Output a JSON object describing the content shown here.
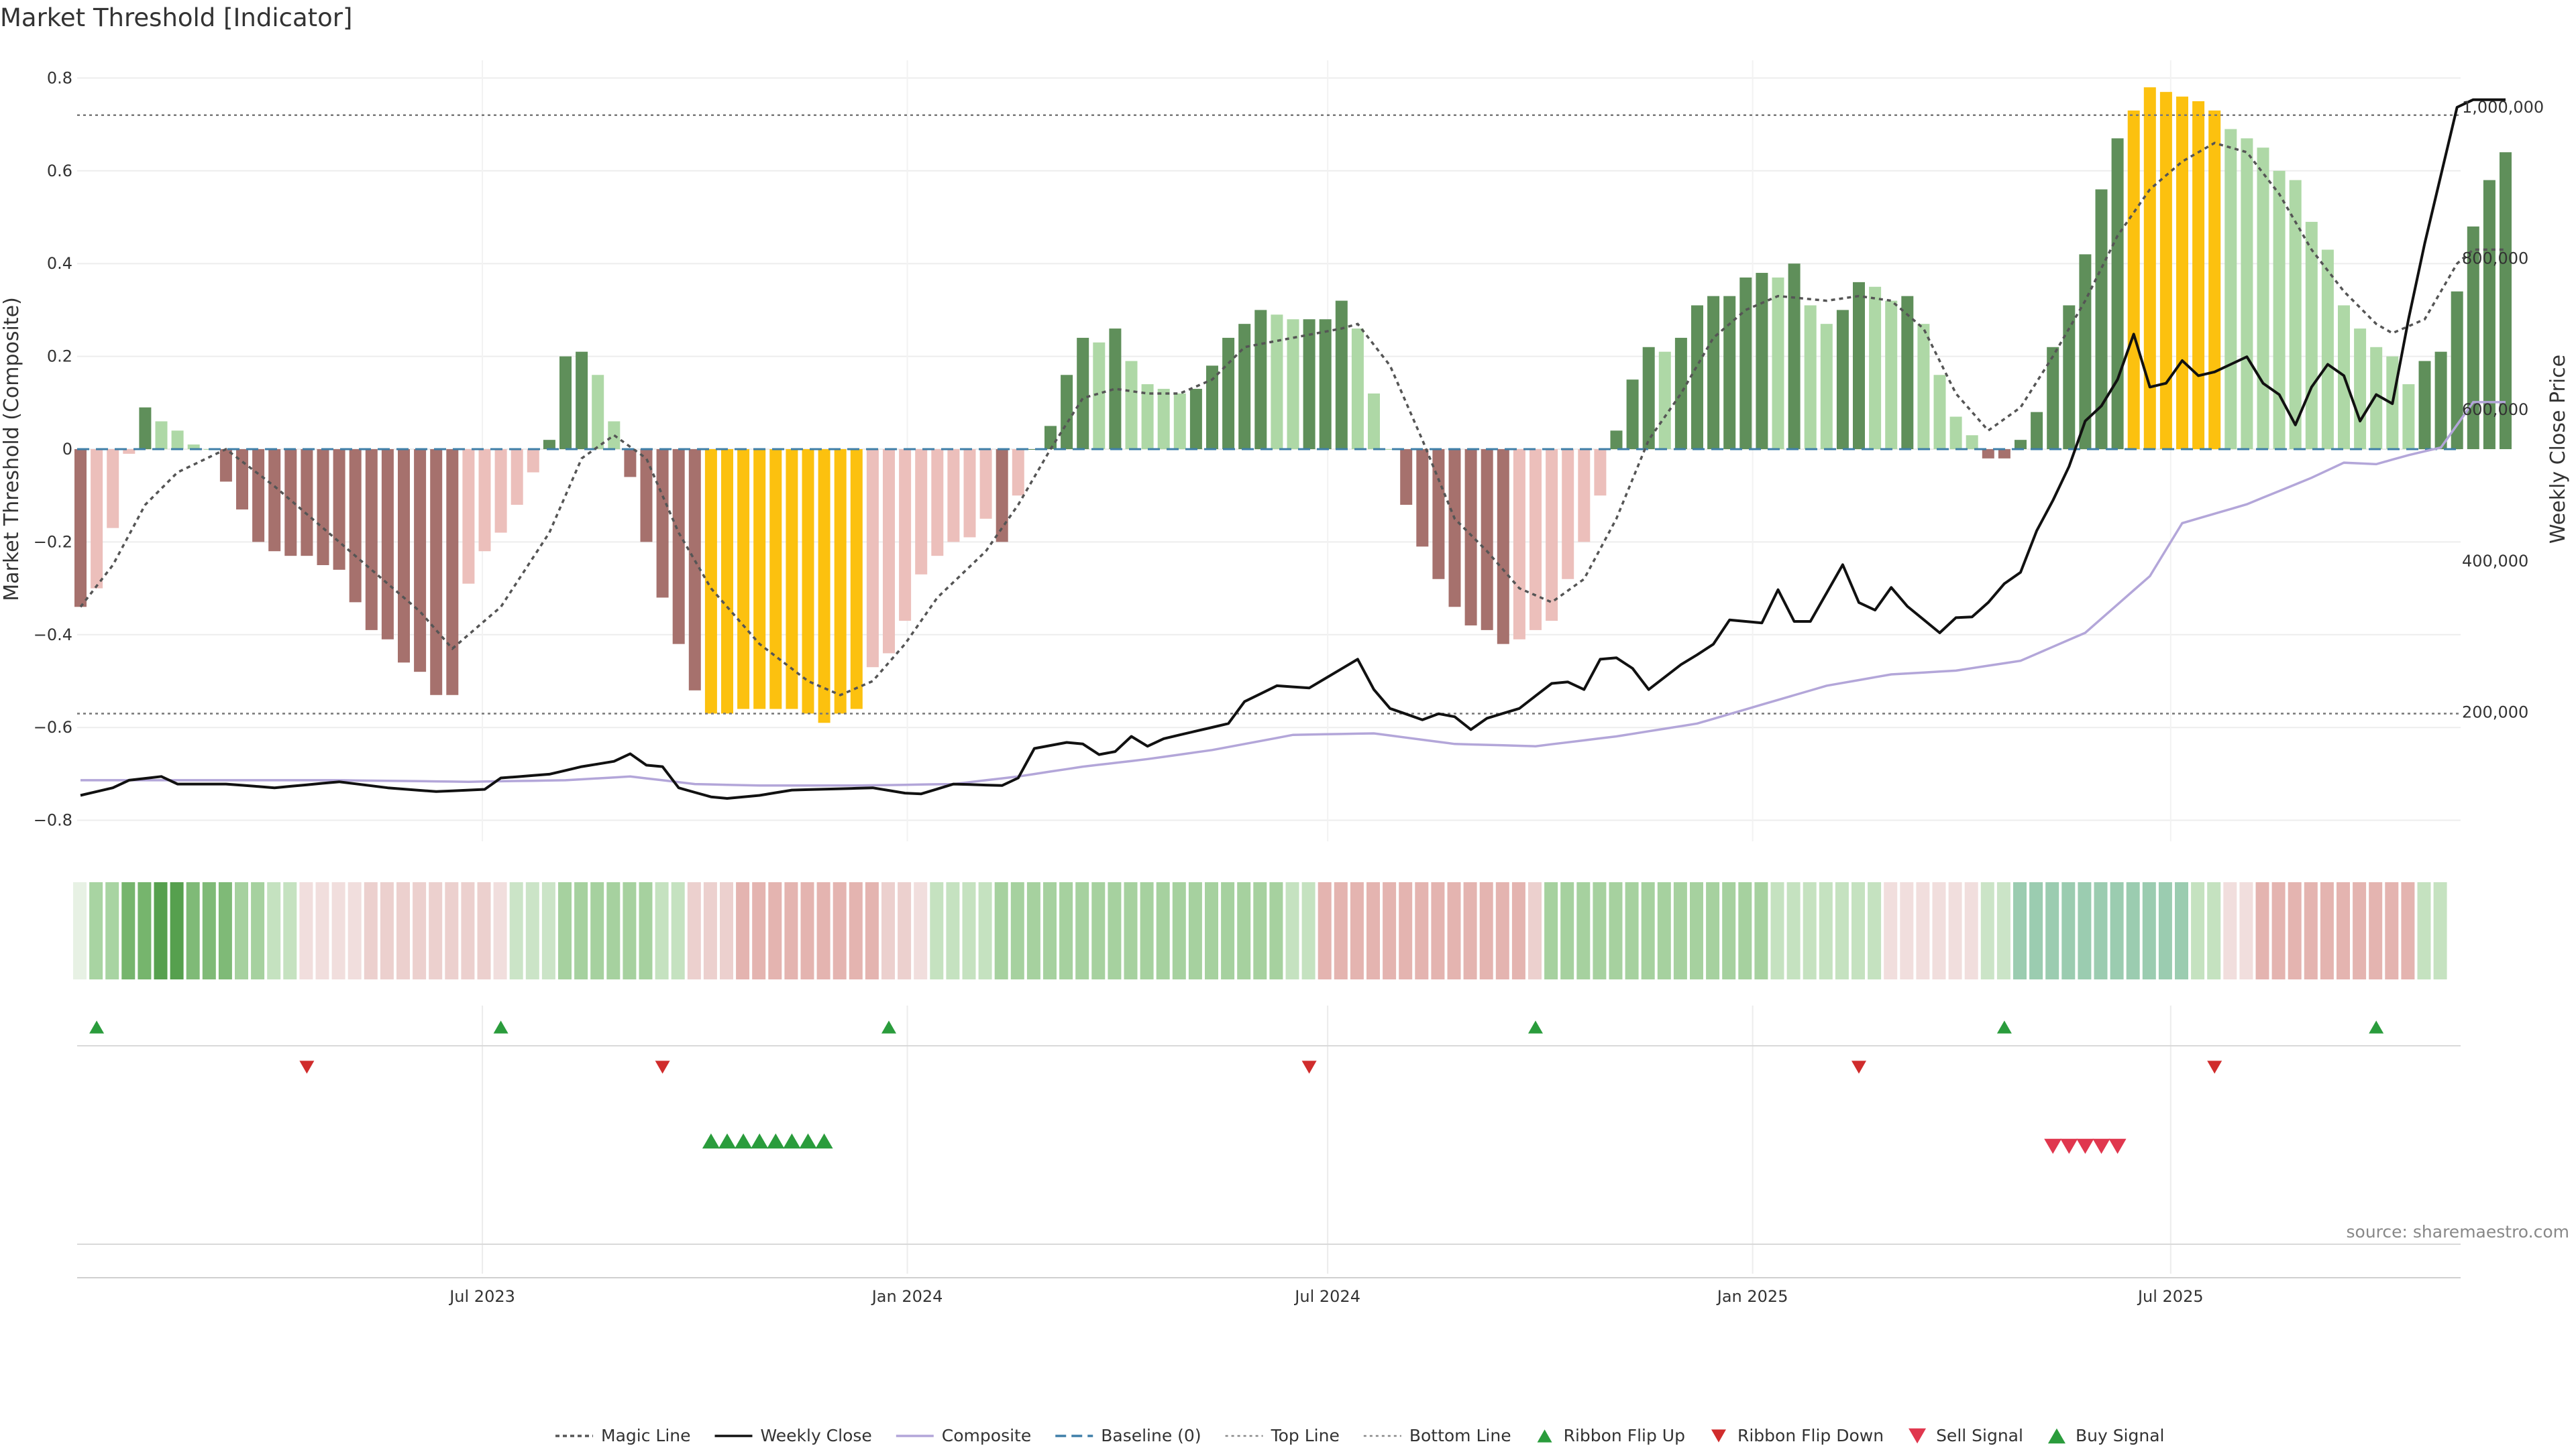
{
  "chart_data": {
    "type": "bar",
    "title": "Market Threshold [Indicator]",
    "ylabel": "Market Threshold (Composite)",
    "y2label": "Weekly Close Price",
    "ylim": [
      -0.85,
      0.85
    ],
    "y2lim": [
      0,
      1100000
    ],
    "yticks": [
      "0.8",
      "0.6",
      "0.4",
      "0.2",
      "0",
      "−0.2",
      "−0.4",
      "−0.6",
      "−0.8"
    ],
    "y2ticks": [
      "1,000,000",
      "800,000",
      "600,000",
      "400,000",
      "200,000"
    ],
    "xstart": "2023-01-08",
    "interval_days": 7,
    "xticks": [
      {
        "label": "Jul 2023",
        "date": "2023-07-01"
      },
      {
        "label": "Jan 2024",
        "date": "2024-01-01"
      },
      {
        "label": "Jul 2024",
        "date": "2024-07-01"
      },
      {
        "label": "Jan 2025",
        "date": "2025-01-01"
      },
      {
        "label": "Jul 2025",
        "date": "2025-07-01"
      }
    ],
    "top_line": 0.72,
    "bottom_line": -0.57,
    "composite_bars": [
      -0.34,
      -0.3,
      -0.17,
      -0.01,
      0.09,
      0.06,
      0.04,
      0.01,
      0,
      -0.07,
      -0.13,
      -0.2,
      -0.22,
      -0.23,
      -0.23,
      -0.25,
      -0.26,
      -0.33,
      -0.39,
      -0.41,
      -0.46,
      -0.48,
      -0.53,
      -0.53,
      -0.29,
      -0.22,
      -0.18,
      -0.12,
      -0.05,
      0.02,
      0.2,
      0.21,
      0.16,
      0.06,
      -0.06,
      -0.2,
      -0.32,
      -0.42,
      -0.52,
      -0.57,
      -0.57,
      -0.56,
      -0.56,
      -0.56,
      -0.56,
      -0.57,
      -0.59,
      -0.57,
      -0.56,
      -0.47,
      -0.44,
      -0.37,
      -0.27,
      -0.23,
      -0.2,
      -0.19,
      -0.15,
      -0.2,
      -0.1,
      0,
      0.05,
      0.16,
      0.24,
      0.23,
      0.26,
      0.19,
      0.14,
      0.13,
      0.12,
      0.13,
      0.18,
      0.24,
      0.27,
      0.3,
      0.29,
      0.28,
      0.28,
      0.28,
      0.32,
      0.26,
      0.12,
      0,
      -0.12,
      -0.21,
      -0.28,
      -0.34,
      -0.38,
      -0.39,
      -0.42,
      -0.41,
      -0.39,
      -0.37,
      -0.28,
      -0.2,
      -0.1,
      0.04,
      0.15,
      0.22,
      0.21,
      0.24,
      0.31,
      0.33,
      0.33,
      0.37,
      0.38,
      0.37,
      0.4,
      0.31,
      0.27,
      0.3,
      0.36,
      0.35,
      0.32,
      0.33,
      0.27,
      0.16,
      0.07,
      0.03,
      -0.02,
      -0.02,
      0.02,
      0.08,
      0.22,
      0.31,
      0.42,
      0.56,
      0.67,
      0.73,
      0.78,
      0.77,
      0.76,
      0.75,
      0.73,
      0.69,
      0.67,
      0.65,
      0.6,
      0.58,
      0.49,
      0.43,
      0.31,
      0.26,
      0.22,
      0.2,
      0.14,
      0.19,
      0.21,
      0.34,
      0.48,
      0.58,
      0.64
    ],
    "bar_colors": [
      {
        "name": "strong-positive",
        "color": "#5f8f5a"
      },
      {
        "name": "weak-positive",
        "color": "#aed8a6"
      },
      {
        "name": "strong-negative",
        "color": "#a6716d"
      },
      {
        "name": "weak-negative",
        "color": "#ecbfbb"
      },
      {
        "name": "extreme",
        "color": "#fcc10f"
      }
    ],
    "price_keypoints": [
      [
        0,
        90000
      ],
      [
        2,
        100000
      ],
      [
        3,
        110000
      ],
      [
        5,
        115000
      ],
      [
        6,
        105000
      ],
      [
        9,
        105000
      ],
      [
        12,
        100000
      ],
      [
        16,
        108000
      ],
      [
        19,
        100000
      ],
      [
        22,
        95000
      ],
      [
        25,
        98000
      ],
      [
        26,
        113000
      ],
      [
        29,
        118000
      ],
      [
        31,
        128000
      ],
      [
        33,
        135000
      ],
      [
        34,
        145000
      ],
      [
        35,
        130000
      ],
      [
        36,
        128000
      ],
      [
        37,
        100000
      ],
      [
        39,
        88000
      ],
      [
        40,
        86000
      ],
      [
        42,
        90000
      ],
      [
        44,
        97000
      ],
      [
        49,
        100000
      ],
      [
        51,
        93000
      ],
      [
        52,
        92000
      ],
      [
        54,
        105000
      ],
      [
        57,
        103000
      ],
      [
        58,
        113000
      ],
      [
        59,
        152000
      ],
      [
        61,
        160000
      ],
      [
        62,
        158000
      ],
      [
        63,
        144000
      ],
      [
        64,
        148000
      ],
      [
        65,
        168000
      ],
      [
        66,
        155000
      ],
      [
        67,
        165000
      ],
      [
        69,
        175000
      ],
      [
        71,
        185000
      ],
      [
        72,
        214000
      ],
      [
        74,
        235000
      ],
      [
        76,
        232000
      ],
      [
        79,
        270000
      ],
      [
        80,
        230000
      ],
      [
        81,
        205000
      ],
      [
        83,
        190000
      ],
      [
        84,
        198000
      ],
      [
        85,
        194000
      ],
      [
        86,
        177000
      ],
      [
        87,
        192000
      ],
      [
        89,
        205000
      ],
      [
        91,
        238000
      ],
      [
        92,
        240000
      ],
      [
        93,
        230000
      ],
      [
        94,
        270000
      ],
      [
        95,
        272000
      ],
      [
        96,
        258000
      ],
      [
        97,
        230000
      ],
      [
        99,
        263000
      ],
      [
        100,
        276000
      ],
      [
        101,
        290000
      ],
      [
        102,
        322000
      ],
      [
        104,
        318000
      ],
      [
        105,
        362000
      ],
      [
        106,
        320000
      ],
      [
        107,
        320000
      ],
      [
        109,
        395000
      ],
      [
        110,
        345000
      ],
      [
        111,
        335000
      ],
      [
        112,
        365000
      ],
      [
        113,
        340000
      ],
      [
        115,
        305000
      ],
      [
        116,
        325000
      ],
      [
        117,
        326000
      ],
      [
        118,
        345000
      ],
      [
        119,
        370000
      ],
      [
        120,
        385000
      ],
      [
        121,
        440000
      ],
      [
        122,
        480000
      ],
      [
        123,
        525000
      ],
      [
        124,
        585000
      ],
      [
        125,
        605000
      ],
      [
        126,
        640000
      ],
      [
        127,
        700000
      ],
      [
        128,
        630000
      ],
      [
        129,
        635000
      ],
      [
        130,
        665000
      ],
      [
        131,
        645000
      ],
      [
        132,
        650000
      ],
      [
        134,
        670000
      ],
      [
        135,
        635000
      ],
      [
        136,
        620000
      ],
      [
        137,
        580000
      ],
      [
        138,
        630000
      ],
      [
        139,
        660000
      ],
      [
        140,
        645000
      ],
      [
        141,
        585000
      ],
      [
        142,
        620000
      ],
      [
        143,
        608000
      ],
      [
        144,
        720000
      ],
      [
        145,
        820000
      ],
      [
        146,
        910000
      ],
      [
        147,
        1000000
      ],
      [
        148,
        1010000
      ]
    ],
    "magic_keypoints": [
      [
        0,
        -0.34
      ],
      [
        2,
        -0.25
      ],
      [
        4,
        -0.12
      ],
      [
        6,
        -0.05
      ],
      [
        9,
        0.0
      ],
      [
        12,
        -0.08
      ],
      [
        15,
        -0.17
      ],
      [
        18,
        -0.26
      ],
      [
        21,
        -0.35
      ],
      [
        23,
        -0.43
      ],
      [
        26,
        -0.34
      ],
      [
        29,
        -0.18
      ],
      [
        31,
        -0.02
      ],
      [
        33,
        0.03
      ],
      [
        35,
        -0.02
      ],
      [
        37,
        -0.18
      ],
      [
        39,
        -0.3
      ],
      [
        42,
        -0.42
      ],
      [
        45,
        -0.5
      ],
      [
        47,
        -0.53
      ],
      [
        49,
        -0.5
      ],
      [
        51,
        -0.42
      ],
      [
        53,
        -0.32
      ],
      [
        56,
        -0.22
      ],
      [
        58,
        -0.12
      ],
      [
        60,
        0.0
      ],
      [
        62,
        0.11
      ],
      [
        64,
        0.13
      ],
      [
        66,
        0.12
      ],
      [
        68,
        0.12
      ],
      [
        70,
        0.15
      ],
      [
        72,
        0.22
      ],
      [
        75,
        0.24
      ],
      [
        78,
        0.26
      ],
      [
        79,
        0.27
      ],
      [
        81,
        0.18
      ],
      [
        83,
        0.02
      ],
      [
        85,
        -0.15
      ],
      [
        87,
        -0.22
      ],
      [
        89,
        -0.3
      ],
      [
        91,
        -0.33
      ],
      [
        93,
        -0.28
      ],
      [
        95,
        -0.15
      ],
      [
        97,
        0.02
      ],
      [
        99,
        0.12
      ],
      [
        101,
        0.24
      ],
      [
        103,
        0.3
      ],
      [
        105,
        0.33
      ],
      [
        108,
        0.32
      ],
      [
        110,
        0.33
      ],
      [
        112,
        0.32
      ],
      [
        114,
        0.26
      ],
      [
        116,
        0.12
      ],
      [
        118,
        0.04
      ],
      [
        120,
        0.09
      ],
      [
        122,
        0.2
      ],
      [
        124,
        0.32
      ],
      [
        126,
        0.46
      ],
      [
        128,
        0.56
      ],
      [
        130,
        0.62
      ],
      [
        132,
        0.66
      ],
      [
        134,
        0.64
      ],
      [
        136,
        0.55
      ],
      [
        138,
        0.43
      ],
      [
        140,
        0.34
      ],
      [
        142,
        0.27
      ],
      [
        143,
        0.25
      ],
      [
        145,
        0.28
      ],
      [
        147,
        0.4
      ],
      [
        148,
        0.43
      ]
    ],
    "composite_price_keypoints": [
      [
        0,
        110000
      ],
      [
        10,
        110000
      ],
      [
        16,
        110000
      ],
      [
        24,
        108000
      ],
      [
        30,
        110000
      ],
      [
        34,
        115000
      ],
      [
        38,
        105000
      ],
      [
        42,
        103000
      ],
      [
        48,
        103000
      ],
      [
        54,
        105000
      ],
      [
        58,
        115000
      ],
      [
        62,
        128000
      ],
      [
        66,
        138000
      ],
      [
        70,
        150000
      ],
      [
        75,
        170000
      ],
      [
        80,
        172000
      ],
      [
        85,
        158000
      ],
      [
        90,
        155000
      ],
      [
        95,
        168000
      ],
      [
        100,
        185000
      ],
      [
        104,
        210000
      ],
      [
        108,
        235000
      ],
      [
        112,
        250000
      ],
      [
        116,
        255000
      ],
      [
        120,
        268000
      ],
      [
        124,
        305000
      ],
      [
        128,
        380000
      ],
      [
        130,
        450000
      ],
      [
        134,
        475000
      ],
      [
        138,
        510000
      ],
      [
        140,
        530000
      ],
      [
        142,
        528000
      ],
      [
        144,
        540000
      ],
      [
        146,
        550000
      ],
      [
        148,
        610000
      ]
    ],
    "ribbon": {
      "segments": [
        [
          1,
          "#e7f1e4"
        ],
        [
          2,
          "#a8d4a2"
        ],
        [
          2,
          "#76b56d"
        ],
        [
          2,
          "#56a04e"
        ],
        [
          3,
          "#7fba77"
        ],
        [
          2,
          "#a6d19f"
        ],
        [
          2,
          "#c5e2c0"
        ],
        [
          4,
          "#f1dedd"
        ],
        [
          8,
          "#ecd0ce"
        ],
        [
          1,
          "#f1dedd"
        ],
        [
          3,
          "#cbe4c7"
        ],
        [
          6,
          "#a6d19f"
        ],
        [
          2,
          "#c5e2c0"
        ],
        [
          3,
          "#ecd0ce"
        ],
        [
          9,
          "#e4b4b0"
        ],
        [
          2,
          "#ecd0ce"
        ],
        [
          1,
          "#f1dedd"
        ],
        [
          4,
          "#c5e2c0"
        ],
        [
          18,
          "#a6d19f"
        ],
        [
          2,
          "#c5e2c0"
        ],
        [
          13,
          "#e4b4b0"
        ],
        [
          1,
          "#ecd0ce"
        ],
        [
          14,
          "#a6d19f"
        ],
        [
          7,
          "#c5e2c0"
        ],
        [
          6,
          "#f1dedd"
        ],
        [
          2,
          "#cbe4c7"
        ],
        [
          11,
          "#9bccb0"
        ],
        [
          2,
          "#c5e2c0"
        ],
        [
          2,
          "#f1dedd"
        ],
        [
          10,
          "#e4b4b0"
        ],
        [
          2,
          "#c5e2c0"
        ]
      ]
    },
    "ribbon_flip_up": [
      1,
      26,
      50,
      90,
      119,
      142
    ],
    "ribbon_flip_down": [
      14,
      36,
      76,
      110,
      132
    ],
    "buy_signals": [
      39,
      40,
      41,
      42,
      43,
      44,
      45,
      46
    ],
    "sell_signals": [
      122,
      123,
      124,
      125,
      126
    ],
    "legend": [
      {
        "label": "Magic Line",
        "kind": "line-dotted",
        "color": "#555555"
      },
      {
        "label": "Weekly Close",
        "kind": "line-solid",
        "color": "#111111"
      },
      {
        "label": "Composite",
        "kind": "line-solid",
        "color": "#b3a6d9"
      },
      {
        "label": "Baseline (0)",
        "kind": "line-dashed",
        "color": "#3f7fa8"
      },
      {
        "label": "Top Line",
        "kind": "line-dotted-fine",
        "color": "#888888"
      },
      {
        "label": "Bottom Line",
        "kind": "line-dotted-fine",
        "color": "#888888"
      },
      {
        "label": "Ribbon Flip Up",
        "kind": "tri-up",
        "color": "#2a9c3c"
      },
      {
        "label": "Ribbon Flip Down",
        "kind": "tri-down",
        "color": "#d02c2c"
      },
      {
        "label": "Sell Signal",
        "kind": "tri-down-large",
        "color": "#e0374e"
      },
      {
        "label": "Buy Signal",
        "kind": "tri-up-large",
        "color": "#2a9c3c"
      }
    ],
    "source": "source: sharemaestro.com"
  }
}
